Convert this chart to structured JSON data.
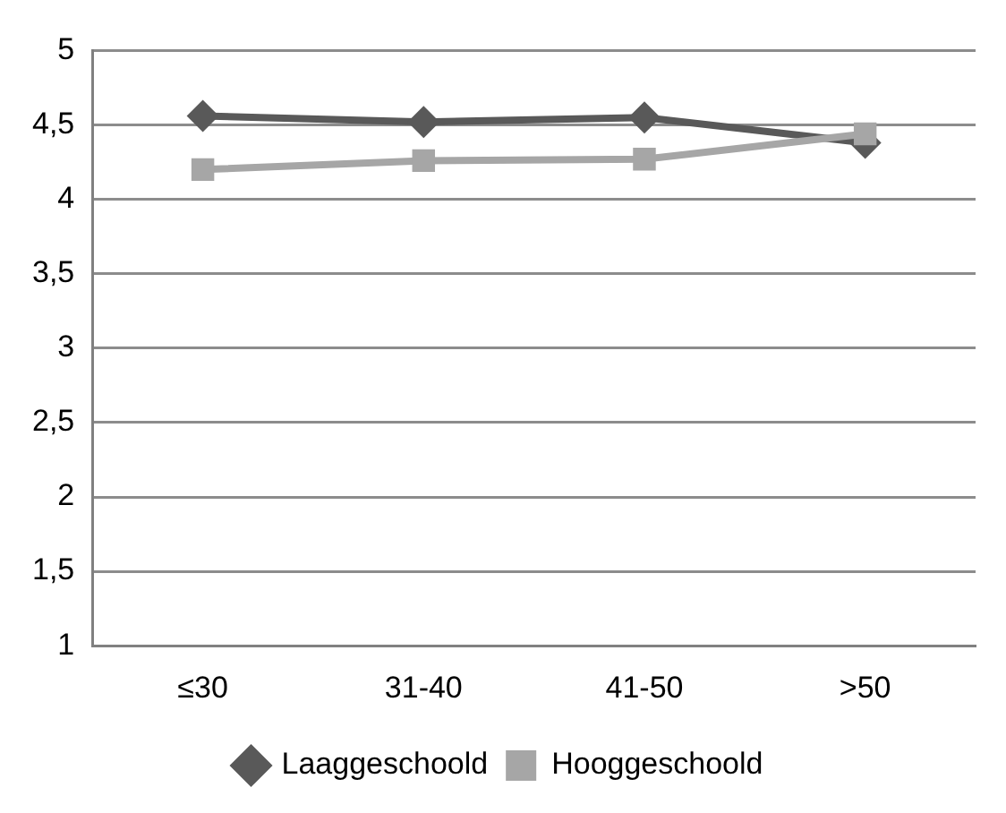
{
  "chart_data": {
    "type": "line",
    "categories": [
      "≤30",
      "31-40",
      "41-50",
      ">50"
    ],
    "series": [
      {
        "name": "Laaggeschoold",
        "color": "#595959",
        "values": [
          4.56,
          4.52,
          4.55,
          4.38
        ],
        "marker": "diamond"
      },
      {
        "name": "Hooggeschoold",
        "color": "#a6a6a6",
        "values": [
          4.2,
          4.26,
          4.27,
          4.44
        ],
        "marker": "square"
      }
    ],
    "ylim": [
      1,
      5
    ],
    "yticks": [
      {
        "value": 1,
        "label": "1"
      },
      {
        "value": 1.5,
        "label": "1,5"
      },
      {
        "value": 2,
        "label": "2"
      },
      {
        "value": 2.5,
        "label": "2,5"
      },
      {
        "value": 3,
        "label": "3"
      },
      {
        "value": 3.5,
        "label": "3,5"
      },
      {
        "value": 4,
        "label": "4"
      },
      {
        "value": 4.5,
        "label": "4,5"
      },
      {
        "value": 5,
        "label": "5"
      }
    ],
    "grid": "y",
    "legend": "bottom",
    "line_style": "solid"
  }
}
